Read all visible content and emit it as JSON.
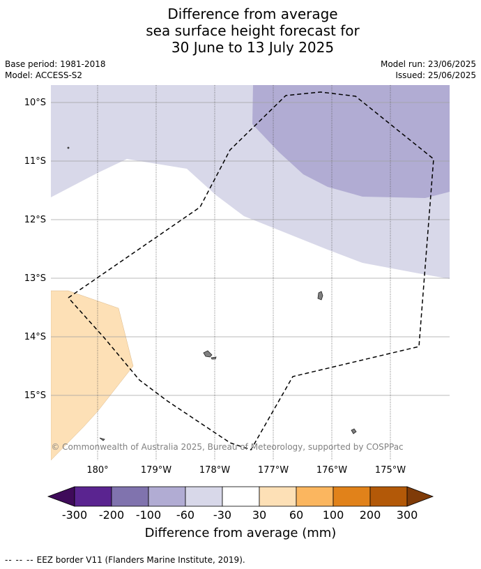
{
  "header": {
    "title_lines": [
      "Difference from average",
      "sea surface height forecast for",
      "30 June to 13 July 2025"
    ],
    "base_period": "Base period: 1981-2018",
    "model": "Model: ACCESS-S2",
    "model_run": "Model run: 23/06/2025",
    "issued": "Issued: 25/06/2025"
  },
  "map": {
    "lat_labels": [
      "10°S",
      "11°S",
      "12°S",
      "13°S",
      "14°S",
      "15°S"
    ],
    "lon_labels": [
      "180°",
      "179°W",
      "178°W",
      "177°W",
      "176°W",
      "175°W"
    ],
    "copyright": "© Commonwealth of Australia 2025, Bureau of Meteorology, supported by COSPPac",
    "colors": {
      "band_minus_60_to_minus_30": "#d8d8e9",
      "band_minus_100_to_minus_60": "#b1acd3",
      "band_30_to_60": "#fde0b6",
      "land": "#808080",
      "eez": "#000000"
    }
  },
  "legend": {
    "tick_labels": [
      "-300",
      "-200",
      "-100",
      "-60",
      "-30",
      "30",
      "60",
      "100",
      "200",
      "300"
    ],
    "title": "Difference from average (mm)",
    "colors": [
      "#3f0b5a",
      "#5a2490",
      "#8073ae",
      "#b1acd3",
      "#d8d8e9",
      "#ffffff",
      "#fde0b6",
      "#fbb65f",
      "#e1821a",
      "#b35908",
      "#7f3b08"
    ]
  },
  "footer": {
    "dash_glyph": "--  --  --",
    "text": "EEZ border V11 (Flanders Marine Institute, 2019)."
  }
}
